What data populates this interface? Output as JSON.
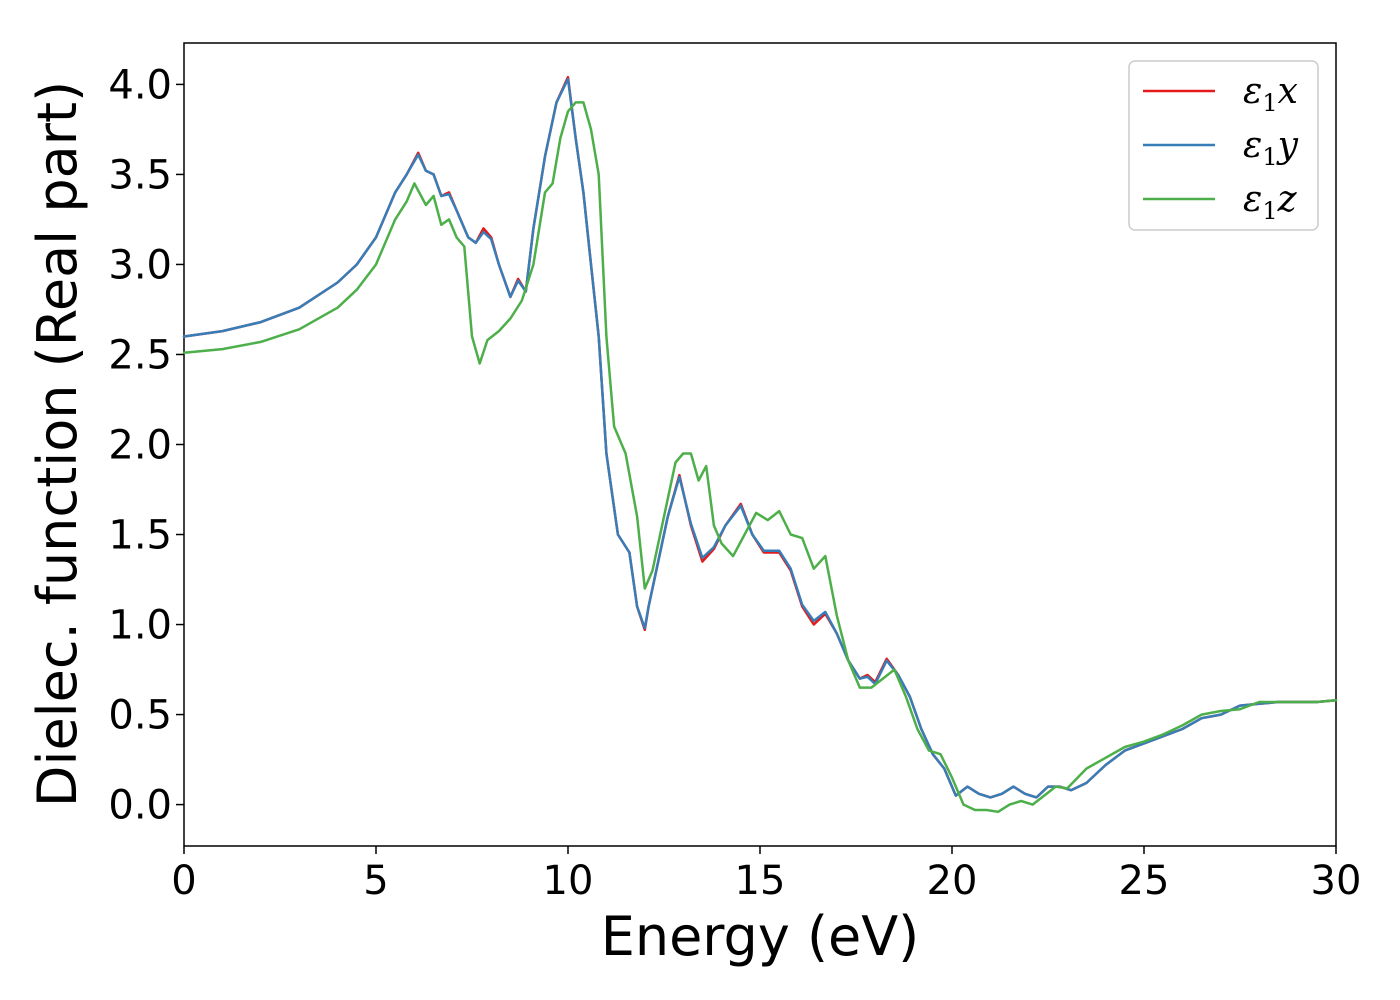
{
  "chart_data": {
    "type": "line",
    "title": "",
    "xlabel": "Energy (eV)",
    "ylabel": "Dielec. function (Real part)",
    "xlim": [
      0,
      30
    ],
    "ylim": [
      -0.23,
      4.23
    ],
    "x_ticks": [
      0,
      5,
      10,
      15,
      20,
      25,
      30
    ],
    "x_tick_labels": [
      "0",
      "5",
      "10",
      "15",
      "20",
      "25",
      "30"
    ],
    "y_ticks": [
      0.0,
      0.5,
      1.0,
      1.5,
      2.0,
      2.5,
      3.0,
      3.5,
      4.0
    ],
    "y_tick_labels": [
      "0.0",
      "0.5",
      "1.0",
      "1.5",
      "2.0",
      "2.5",
      "3.0",
      "3.5",
      "4.0"
    ],
    "grid": false,
    "legend_position": "top-right",
    "series": [
      {
        "name": "ε1x",
        "legend_symbol": "ε",
        "legend_subscript": "1",
        "legend_suffix": "x",
        "color": "#e41a1c",
        "x": [
          0,
          1,
          2,
          3,
          4,
          4.5,
          5,
          5.5,
          5.8,
          6.1,
          6.3,
          6.5,
          6.7,
          6.9,
          7.1,
          7.4,
          7.6,
          7.8,
          8.0,
          8.2,
          8.5,
          8.7,
          8.9,
          9.1,
          9.4,
          9.7,
          10.0,
          10.2,
          10.4,
          10.6,
          10.8,
          11.0,
          11.3,
          11.6,
          11.8,
          12.0,
          12.1,
          12.3,
          12.6,
          12.9,
          13.2,
          13.5,
          13.8,
          14.1,
          14.5,
          14.8,
          15.1,
          15.5,
          15.8,
          16.1,
          16.4,
          16.7,
          17.0,
          17.3,
          17.6,
          17.8,
          18.0,
          18.3,
          18.6,
          18.9,
          19.2,
          19.5,
          19.8,
          20.1,
          20.4,
          20.7,
          21.0,
          21.3,
          21.6,
          21.9,
          22.2,
          22.5,
          22.8,
          23.1,
          23.5,
          24,
          24.5,
          25,
          25.5,
          26,
          26.5,
          27,
          27.5,
          28,
          28.5,
          29,
          29.5,
          30
        ],
        "y": [
          2.6,
          2.63,
          2.68,
          2.76,
          2.9,
          3.0,
          3.15,
          3.4,
          3.5,
          3.62,
          3.52,
          3.5,
          3.38,
          3.4,
          3.3,
          3.15,
          3.12,
          3.2,
          3.15,
          3.0,
          2.82,
          2.92,
          2.85,
          3.2,
          3.6,
          3.9,
          4.04,
          3.7,
          3.4,
          3.0,
          2.6,
          1.95,
          1.5,
          1.4,
          1.1,
          0.97,
          1.1,
          1.3,
          1.6,
          1.83,
          1.55,
          1.35,
          1.42,
          1.55,
          1.67,
          1.5,
          1.4,
          1.4,
          1.3,
          1.1,
          1.0,
          1.06,
          0.95,
          0.8,
          0.7,
          0.72,
          0.68,
          0.81,
          0.72,
          0.6,
          0.42,
          0.28,
          0.2,
          0.05,
          0.1,
          0.06,
          0.04,
          0.06,
          0.1,
          0.06,
          0.04,
          0.1,
          0.1,
          0.08,
          0.12,
          0.22,
          0.3,
          0.34,
          0.38,
          0.42,
          0.48,
          0.5,
          0.55,
          0.56,
          0.57,
          0.57,
          0.57,
          0.58
        ]
      },
      {
        "name": "ε1y",
        "legend_symbol": "ε",
        "legend_subscript": "1",
        "legend_suffix": "y",
        "color": "#377eb8",
        "x": [
          0,
          1,
          2,
          3,
          4,
          4.5,
          5,
          5.5,
          5.8,
          6.1,
          6.3,
          6.5,
          6.7,
          6.9,
          7.1,
          7.4,
          7.6,
          7.8,
          8.0,
          8.2,
          8.5,
          8.7,
          8.9,
          9.1,
          9.4,
          9.7,
          10.0,
          10.2,
          10.4,
          10.6,
          10.8,
          11.0,
          11.3,
          11.6,
          11.8,
          12.0,
          12.1,
          12.3,
          12.6,
          12.9,
          13.2,
          13.5,
          13.8,
          14.1,
          14.5,
          14.8,
          15.1,
          15.5,
          15.8,
          16.1,
          16.4,
          16.7,
          17.0,
          17.3,
          17.6,
          17.8,
          18.0,
          18.3,
          18.6,
          18.9,
          19.2,
          19.5,
          19.8,
          20.1,
          20.4,
          20.7,
          21.0,
          21.3,
          21.6,
          21.9,
          22.2,
          22.5,
          22.8,
          23.1,
          23.5,
          24,
          24.5,
          25,
          25.5,
          26,
          26.5,
          27,
          27.5,
          28,
          28.5,
          29,
          29.5,
          30
        ],
        "y": [
          2.6,
          2.63,
          2.68,
          2.76,
          2.9,
          3.0,
          3.15,
          3.4,
          3.5,
          3.61,
          3.52,
          3.5,
          3.38,
          3.39,
          3.3,
          3.15,
          3.12,
          3.18,
          3.14,
          3.0,
          2.82,
          2.91,
          2.85,
          3.2,
          3.6,
          3.9,
          4.03,
          3.7,
          3.4,
          3.0,
          2.6,
          1.95,
          1.5,
          1.4,
          1.1,
          0.98,
          1.1,
          1.3,
          1.6,
          1.82,
          1.56,
          1.37,
          1.43,
          1.55,
          1.66,
          1.5,
          1.41,
          1.41,
          1.31,
          1.11,
          1.02,
          1.07,
          0.95,
          0.8,
          0.7,
          0.71,
          0.67,
          0.8,
          0.72,
          0.6,
          0.42,
          0.28,
          0.2,
          0.05,
          0.1,
          0.06,
          0.04,
          0.06,
          0.1,
          0.06,
          0.04,
          0.1,
          0.1,
          0.08,
          0.12,
          0.22,
          0.3,
          0.34,
          0.38,
          0.42,
          0.48,
          0.5,
          0.55,
          0.56,
          0.57,
          0.57,
          0.57,
          0.58
        ]
      },
      {
        "name": "ε1z",
        "legend_symbol": "ε",
        "legend_subscript": "1",
        "legend_suffix": "z",
        "color": "#4daf4a",
        "x": [
          0,
          1,
          2,
          3,
          4,
          4.5,
          5,
          5.5,
          5.8,
          6.0,
          6.3,
          6.5,
          6.7,
          6.9,
          7.1,
          7.3,
          7.5,
          7.7,
          7.9,
          8.2,
          8.5,
          8.8,
          9.1,
          9.4,
          9.6,
          9.8,
          10.0,
          10.2,
          10.4,
          10.6,
          10.8,
          11.0,
          11.2,
          11.5,
          11.8,
          12.0,
          12.2,
          12.5,
          12.8,
          13.0,
          13.2,
          13.4,
          13.6,
          13.8,
          14.0,
          14.3,
          14.6,
          14.9,
          15.2,
          15.5,
          15.8,
          16.1,
          16.4,
          16.7,
          17.0,
          17.3,
          17.6,
          17.9,
          18.2,
          18.5,
          18.8,
          19.1,
          19.4,
          19.7,
          20.0,
          20.3,
          20.6,
          20.9,
          21.2,
          21.5,
          21.8,
          22.1,
          22.4,
          22.7,
          23.0,
          23.5,
          24,
          24.5,
          25,
          25.5,
          26,
          26.5,
          27,
          27.5,
          28,
          28.5,
          29,
          29.5,
          30
        ],
        "y": [
          2.51,
          2.53,
          2.57,
          2.64,
          2.76,
          2.86,
          3.0,
          3.25,
          3.35,
          3.45,
          3.33,
          3.38,
          3.22,
          3.25,
          3.15,
          3.1,
          2.6,
          2.45,
          2.58,
          2.63,
          2.7,
          2.8,
          3.0,
          3.4,
          3.45,
          3.7,
          3.85,
          3.9,
          3.9,
          3.75,
          3.5,
          2.6,
          2.1,
          1.95,
          1.6,
          1.2,
          1.3,
          1.6,
          1.9,
          1.95,
          1.95,
          1.8,
          1.88,
          1.55,
          1.45,
          1.38,
          1.5,
          1.62,
          1.58,
          1.63,
          1.5,
          1.48,
          1.31,
          1.38,
          1.05,
          0.8,
          0.65,
          0.65,
          0.7,
          0.75,
          0.6,
          0.42,
          0.3,
          0.28,
          0.15,
          0.0,
          -0.03,
          -0.03,
          -0.04,
          0.0,
          0.02,
          0.0,
          0.05,
          0.1,
          0.09,
          0.2,
          0.26,
          0.32,
          0.35,
          0.39,
          0.44,
          0.5,
          0.52,
          0.53,
          0.57,
          0.57,
          0.57,
          0.57,
          0.58
        ]
      }
    ]
  }
}
